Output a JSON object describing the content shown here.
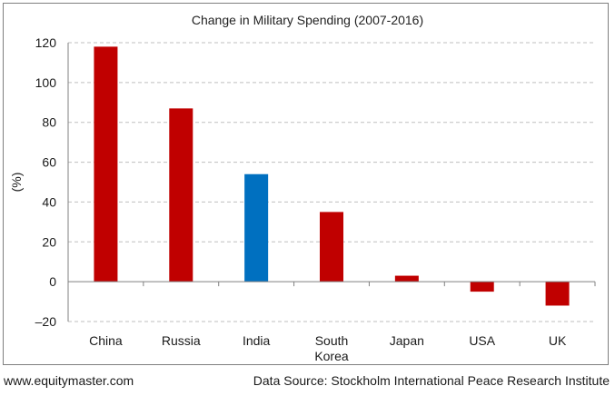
{
  "chart_data": {
    "type": "bar",
    "title": "Change in Military Spending  (2007-2016)",
    "ylabel": "(%)",
    "xlabel": "",
    "categories": [
      "China",
      "Russia",
      "India",
      "South Korea",
      "Japan",
      "USA",
      "UK"
    ],
    "category_lines": [
      [
        "China"
      ],
      [
        "Russia"
      ],
      [
        "India"
      ],
      [
        "South",
        "Korea"
      ],
      [
        "Japan"
      ],
      [
        "USA"
      ],
      [
        "UK"
      ]
    ],
    "values": [
      118,
      87,
      54,
      35,
      3,
      -5,
      -12
    ],
    "colors": [
      "#c00000",
      "#c00000",
      "#0070c0",
      "#c00000",
      "#c00000",
      "#c00000",
      "#c00000"
    ],
    "ylim": [
      -20,
      120
    ],
    "yticks": [
      -20,
      0,
      20,
      40,
      60,
      80,
      100,
      120
    ],
    "grid": true,
    "legend": "none"
  },
  "footer": {
    "website": "www.equitymaster.com",
    "source": "Data Source: Stockholm International Peace Research Institute"
  }
}
